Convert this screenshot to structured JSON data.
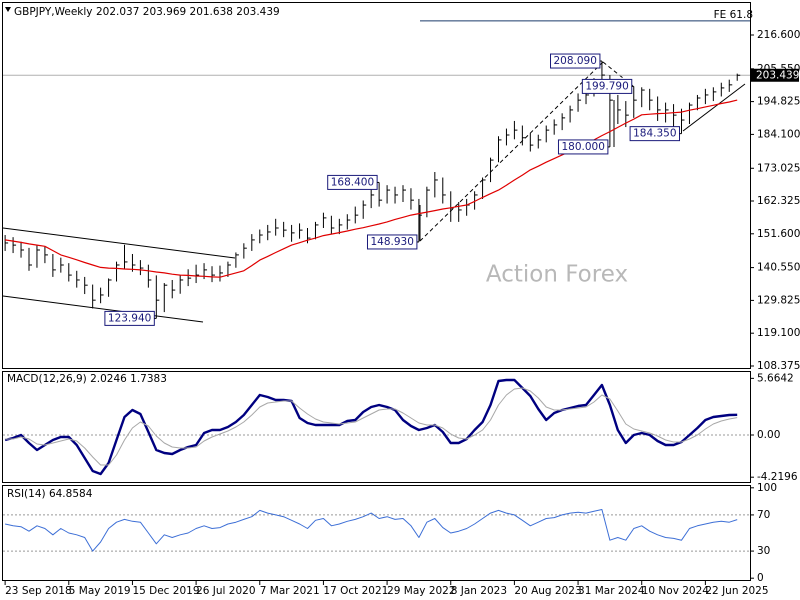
{
  "chart_data": [
    {
      "type": "ohlc",
      "title": "GBPJPY,Weekly",
      "quote": "202.037 203.969 201.638 203.439",
      "watermark": "Action Forex",
      "x": [
        "23 Sep 2018",
        "21 Oct 2018",
        "18 Nov 2018",
        "16 Dec 2018",
        "13 Jan 2019",
        "10 Feb 2019",
        "10 Mar 2019",
        "7 Apr 2019",
        "5 May 2019",
        "2 Jun 2019",
        "30 Jun 2019",
        "28 Jul 2019",
        "25 Aug 2019",
        "22 Sep 2019",
        "20 Oct 2019",
        "17 Nov 2019",
        "15 Dec 2019",
        "12 Jan 2020",
        "9 Feb 2020",
        "8 Mar 2020",
        "5 Apr 2020",
        "3 May 2020",
        "31 May 2020",
        "28 Jun 2020",
        "26 Jul 2020",
        "23 Aug 2020",
        "20 Sep 2020",
        "18 Oct 2020",
        "15 Nov 2020",
        "13 Dec 2020",
        "10 Jan 2021",
        "7 Feb 2021",
        "7 Mar 2021",
        "4 Apr 2021",
        "2 May 2021",
        "30 May 2021",
        "27 Jun 2021",
        "25 Jul 2021",
        "22 Aug 2021",
        "19 Sep 2021",
        "17 Oct 2021",
        "14 Nov 2021",
        "12 Dec 2021",
        "9 Jan 2022",
        "6 Feb 2022",
        "6 Mar 2022",
        "3 Apr 2022",
        "1 May 2022",
        "29 May 2022",
        "26 Jun 2022",
        "24 Jul 2022",
        "21 Aug 2022",
        "18 Sep 2022",
        "16 Oct 2022",
        "13 Nov 2022",
        "11 Dec 2022",
        "8 Jan 2023",
        "5 Feb 2023",
        "5 Mar 2023",
        "2 Apr 2023",
        "30 Apr 2023",
        "28 May 2023",
        "25 Jun 2023",
        "23 Jul 2023",
        "20 Aug 2023",
        "17 Sep 2023",
        "15 Oct 2023",
        "12 Nov 2023",
        "10 Dec 2023",
        "7 Jan 2024",
        "4 Feb 2024",
        "3 Mar 2024",
        "31 Mar 2024",
        "28 Apr 2024",
        "26 May 2024",
        "23 Jun 2024",
        "21 Jul 2024",
        "18 Aug 2024",
        "15 Sep 2024",
        "13 Oct 2024",
        "10 Nov 2024",
        "8 Dec 2024",
        "5 Jan 2025",
        "2 Feb 2025",
        "2 Mar 2025",
        "30 Mar 2025",
        "27 Apr 2025",
        "25 May 2025",
        "22 Jun 2025",
        "20 Jul 2025",
        "17 Aug 2025",
        "14 Sep 2025",
        "12 Oct 2025"
      ],
      "high": [
        151.2,
        150.5,
        149.0,
        147.0,
        148.0,
        147.5,
        145.0,
        143.8,
        142.0,
        139.5,
        137.5,
        135.0,
        134.0,
        137.0,
        142.5,
        148.0,
        145.0,
        143.0,
        141.5,
        138.0,
        135.5,
        136.5,
        138.0,
        140.0,
        141.5,
        142.0,
        141.0,
        141.2,
        142.5,
        145.5,
        148.5,
        151.5,
        153.0,
        154.5,
        156.5,
        155.5,
        154.5,
        155.0,
        153.5,
        155.5,
        158.5,
        157.5,
        156.5,
        158.0,
        160.5,
        162.5,
        166.5,
        168.4,
        167.5,
        167.0,
        167.5,
        166.5,
        163.0,
        167.0,
        171.8,
        170.0,
        165.5,
        162.0,
        163.0,
        165.5,
        170.0,
        176.5,
        183.5,
        186.0,
        188.5,
        187.0,
        184.5,
        184.0,
        187.0,
        189.0,
        191.0,
        193.5,
        197.5,
        199.5,
        202.5,
        208.09,
        203.5,
        197.0,
        195.0,
        199.79,
        199.5,
        199.0,
        196.5,
        194.5,
        194.0,
        192.5,
        194.5,
        197.0,
        199.0,
        199.5,
        201.0,
        202.0,
        203.969
      ],
      "low": [
        146.0,
        145.3,
        143.8,
        139.5,
        140.5,
        142.0,
        137.5,
        138.9,
        136.0,
        134.0,
        131.9,
        127.2,
        128.9,
        131.0,
        136.0,
        140.0,
        139.2,
        138.1,
        134.0,
        123.94,
        126.0,
        130.5,
        132.0,
        134.5,
        135.5,
        136.8,
        135.8,
        136.0,
        137.5,
        140.5,
        143.5,
        146.0,
        148.5,
        149.5,
        151.0,
        150.5,
        149.0,
        150.0,
        148.5,
        149.8,
        153.5,
        151.5,
        151.5,
        153.0,
        155.0,
        156.5,
        160.0,
        160.5,
        161.5,
        161.5,
        162.0,
        159.5,
        148.93,
        157.0,
        163.5,
        161.5,
        155.5,
        155.5,
        157.5,
        159.5,
        163.0,
        168.5,
        175.0,
        180.5,
        182.5,
        180.5,
        178.5,
        179.5,
        181.5,
        184.0,
        185.5,
        188.0,
        191.5,
        194.0,
        196.5,
        200.0,
        180.0,
        187.5,
        186.5,
        189.5,
        193.0,
        192.0,
        188.5,
        188.0,
        186.5,
        184.35,
        187.5,
        192.0,
        194.0,
        195.0,
        196.5,
        198.0,
        201.638
      ],
      "close": [
        148.6,
        147.9,
        146.3,
        141.4,
        146.3,
        144.7,
        139.8,
        141.4,
        138.1,
        136.5,
        134.8,
        129.9,
        131.6,
        136.5,
        141.4,
        142.4,
        141.4,
        140.4,
        136.5,
        129.9,
        134.8,
        133.2,
        136.5,
        137.1,
        138.1,
        139.8,
        138.1,
        138.8,
        141.4,
        144.7,
        146.9,
        149.6,
        151.2,
        152.2,
        153.5,
        152.8,
        151.9,
        152.8,
        150.2,
        154.5,
        156.8,
        153.5,
        154.5,
        156.1,
        157.7,
        161.0,
        164.3,
        162.6,
        165.9,
        164.3,
        165.9,
        162.6,
        157.7,
        165.9,
        169.2,
        164.3,
        160.0,
        159.4,
        161.0,
        164.3,
        169.2,
        175.7,
        182.3,
        183.9,
        185.5,
        183.0,
        180.6,
        182.3,
        185.5,
        187.2,
        189.5,
        192.1,
        195.3,
        197.0,
        200.3,
        203.5,
        195.3,
        192.1,
        190.4,
        195.3,
        198.6,
        195.3,
        192.1,
        192.1,
        190.4,
        188.8,
        193.7,
        196.0,
        197.0,
        198.0,
        199.3,
        200.3,
        203.439
      ],
      "color": "#000000",
      "ma": {
        "color": "#e00000",
        "values": [
          149.6,
          149.2,
          148.8,
          148.3,
          147.9,
          147.5,
          146.1,
          144.7,
          143.9,
          143.1,
          142.2,
          141.4,
          140.6,
          140.4,
          140.3,
          140.1,
          140.0,
          139.8,
          139.5,
          139.1,
          138.8,
          138.4,
          138.1,
          138.0,
          137.8,
          137.7,
          137.5,
          137.4,
          138.1,
          138.8,
          139.5,
          141.2,
          143.0,
          144.2,
          145.5,
          146.7,
          147.9,
          148.7,
          149.5,
          150.2,
          151.0,
          151.5,
          152.0,
          152.5,
          153.1,
          153.6,
          154.2,
          154.8,
          155.5,
          156.3,
          157.0,
          157.7,
          158.2,
          158.7,
          159.2,
          159.7,
          160.1,
          160.6,
          161.0,
          162.2,
          163.5,
          164.7,
          165.9,
          167.5,
          169.2,
          170.8,
          172.5,
          173.7,
          175.0,
          176.2,
          177.4,
          178.6,
          179.9,
          181.1,
          182.3,
          183.7,
          185.0,
          186.4,
          187.8,
          189.1,
          190.5,
          190.7,
          190.9,
          191.0,
          191.2,
          191.4,
          192.0,
          192.5,
          193.1,
          193.6,
          194.2,
          194.7,
          195.3
        ]
      },
      "last_price": 203.439,
      "annotations": [
        {
          "label": "208.090",
          "value": 208.09,
          "x": "23 Jun 2024"
        },
        {
          "label": "199.790",
          "value": 199.79,
          "x": "13 Oct 2024"
        },
        {
          "label": "180.000",
          "value": 180.0,
          "x": "21 Jul 2024"
        },
        {
          "label": "184.350",
          "value": 184.35,
          "x": "30 Mar 2025"
        },
        {
          "label": "168.400",
          "value": 168.4,
          "x": "1 May 2022"
        },
        {
          "label": "148.930",
          "value": 148.93,
          "x": "18 Sep 2022"
        },
        {
          "label": "123.940",
          "value": 123.94,
          "x": "8 Mar 2020"
        }
      ],
      "fe_line": {
        "label": "FE 61.8",
        "value": 221.2
      },
      "xlim": [
        "12 Sep 2018",
        "26 Nov 2025"
      ],
      "xticks": [
        "23 Sep 2018",
        "5 May 2019",
        "15 Dec 2019",
        "26 Jul 2020",
        "7 Mar 2021",
        "17 Oct 2021",
        "29 May 2022",
        "8 Jan 2023",
        "20 Aug 2023",
        "31 Mar 2024",
        "10 Nov 2024",
        "22 Jun 2025"
      ],
      "ylim": [
        107.72,
        227.39
      ],
      "yticks": [
        {
          "value": 216.6,
          "label": "216.600"
        },
        {
          "value": 205.55,
          "label": "205.550"
        },
        194.825,
        {
          "value": 184.1,
          "label": "184.100"
        },
        173.025,
        162.325,
        {
          "value": 151.6,
          "label": "151.600"
        },
        {
          "value": 140.55,
          "label": "140.550"
        },
        129.825,
        {
          "value": 119.1,
          "label": "119.100"
        },
        108.375
      ]
    },
    {
      "type": "line",
      "title": "MACD(12,26,9) 2.0246 1.7383",
      "series": [
        {
          "color": "#000080",
          "values": [
            -0.5,
            -0.3,
            0.0,
            -0.8,
            -1.5,
            -1.0,
            -0.5,
            -0.2,
            -0.2,
            -1.0,
            -2.3,
            -3.6,
            -3.9,
            -2.8,
            -0.5,
            1.8,
            2.5,
            2.1,
            0.3,
            -1.5,
            -1.8,
            -1.9,
            -1.5,
            -1.2,
            -1.0,
            0.2,
            0.5,
            0.5,
            0.8,
            1.3,
            2.0,
            3.0,
            4.0,
            3.8,
            3.5,
            3.5,
            3.4,
            1.7,
            1.2,
            1.0,
            1.0,
            1.0,
            1.0,
            1.4,
            1.5,
            2.3,
            2.8,
            3.0,
            2.8,
            2.5,
            1.5,
            0.9,
            0.5,
            0.7,
            1.0,
            0.3,
            -0.8,
            -0.8,
            -0.4,
            0.5,
            1.3,
            3.0,
            5.4,
            5.5,
            5.5,
            4.7,
            3.9,
            2.6,
            1.5,
            2.2,
            2.5,
            2.7,
            2.9,
            3.0,
            4.0,
            5.0,
            3.0,
            0.5,
            -0.8,
            0.0,
            0.2,
            0.0,
            -0.6,
            -1.0,
            -1.0,
            -0.7,
            0.0,
            0.7,
            1.5,
            1.8,
            1.9,
            2.0,
            2.0246
          ]
        },
        {
          "color": "#a8a8a8",
          "values": [
            -0.4,
            -0.4,
            -0.2,
            -0.4,
            -0.9,
            -1.0,
            -0.8,
            -0.6,
            -0.4,
            -0.6,
            -1.3,
            -2.2,
            -3.0,
            -3.0,
            -2.0,
            -0.5,
            0.7,
            1.3,
            0.9,
            -0.1,
            -0.8,
            -1.2,
            -1.3,
            -1.3,
            -1.2,
            -0.6,
            -0.2,
            0.1,
            0.4,
            0.8,
            1.3,
            2.0,
            2.8,
            3.2,
            3.3,
            3.4,
            3.4,
            2.7,
            2.1,
            1.6,
            1.3,
            1.2,
            1.1,
            1.2,
            1.3,
            1.7,
            2.1,
            2.5,
            2.6,
            2.6,
            2.2,
            1.7,
            1.2,
            1.0,
            1.0,
            0.7,
            0.1,
            -0.3,
            -0.4,
            0.0,
            0.5,
            1.5,
            3.0,
            4.0,
            4.6,
            4.7,
            4.4,
            3.7,
            2.8,
            2.5,
            2.5,
            2.6,
            2.7,
            2.8,
            3.3,
            4.0,
            3.6,
            2.4,
            1.1,
            0.6,
            0.4,
            0.2,
            -0.1,
            -0.5,
            -0.7,
            -0.7,
            -0.4,
            0.0,
            0.6,
            1.1,
            1.4,
            1.6,
            1.7383
          ]
        }
      ],
      "ylim": [
        -4.7,
        6.3
      ],
      "yticks": [
        5.6642,
        {
          "value": 0,
          "label": "0.00"
        },
        -4.2196
      ],
      "levels": [
        0
      ]
    },
    {
      "type": "line",
      "title": "RSI(14) 64.8584",
      "series": [
        {
          "color": "#3d6fd6",
          "values": [
            60,
            58,
            57,
            52,
            58,
            55,
            48,
            55,
            50,
            48,
            45,
            30,
            40,
            55,
            62,
            65,
            63,
            62,
            50,
            38,
            48,
            45,
            48,
            50,
            55,
            58,
            55,
            56,
            60,
            62,
            65,
            68,
            75,
            72,
            70,
            68,
            64,
            60,
            55,
            64,
            66,
            58,
            60,
            63,
            65,
            68,
            72,
            66,
            68,
            65,
            66,
            58,
            45,
            62,
            66,
            56,
            50,
            52,
            55,
            60,
            66,
            72,
            75,
            72,
            70,
            64,
            58,
            62,
            66,
            67,
            70,
            72,
            73,
            72,
            74,
            76,
            42,
            45,
            42,
            55,
            58,
            52,
            48,
            45,
            44,
            42,
            55,
            58,
            60,
            62,
            63,
            62,
            64.8584
          ]
        }
      ],
      "ylim": [
        -2,
        102
      ],
      "yticks": [
        100,
        70,
        30,
        0
      ],
      "levels": [
        70,
        30
      ]
    }
  ]
}
